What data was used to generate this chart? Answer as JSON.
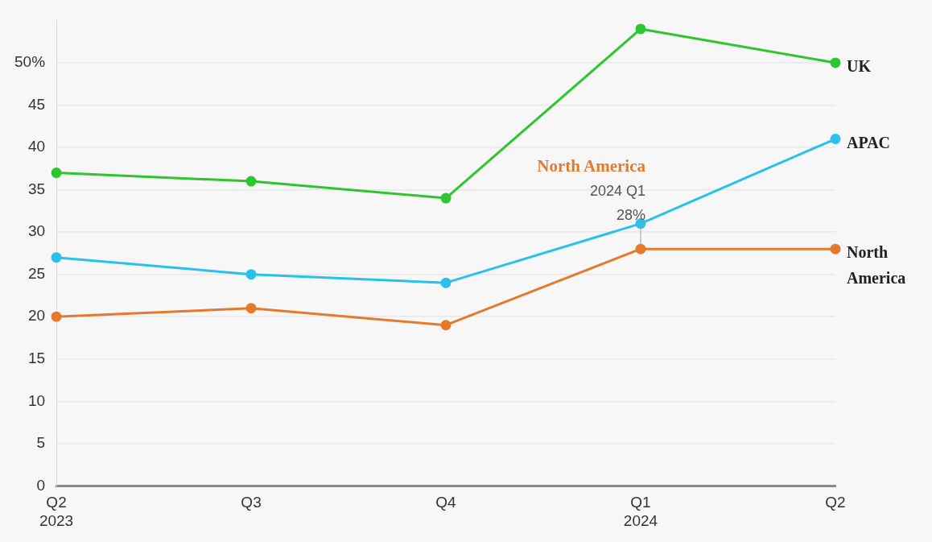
{
  "chart_data": {
    "type": "line",
    "categories": [
      "Q2\n2023",
      "Q3",
      "Q4",
      "Q1\n2024",
      "Q2"
    ],
    "series": [
      {
        "name": "UK",
        "color": "#2ec52e",
        "values": [
          37,
          36,
          34,
          54,
          50
        ]
      },
      {
        "name": "APAC",
        "color": "#29c1ec",
        "values": [
          27,
          25,
          24,
          31,
          41
        ]
      },
      {
        "name": "North America",
        "color": "#e57a2c",
        "values": [
          20,
          21,
          19,
          28,
          28
        ]
      }
    ],
    "ylim": [
      0,
      55
    ],
    "yticks": [
      0,
      5,
      10,
      15,
      20,
      25,
      30,
      35,
      40,
      45,
      {
        "value": 50,
        "label": "50%"
      }
    ],
    "grid": "y",
    "legend": false,
    "marker": "circle",
    "line_style": "solid",
    "annotations": [
      {
        "text": "North America\n2024 Q1\n28%",
        "x": "Q1\n2024",
        "y": 28
      }
    ]
  }
}
